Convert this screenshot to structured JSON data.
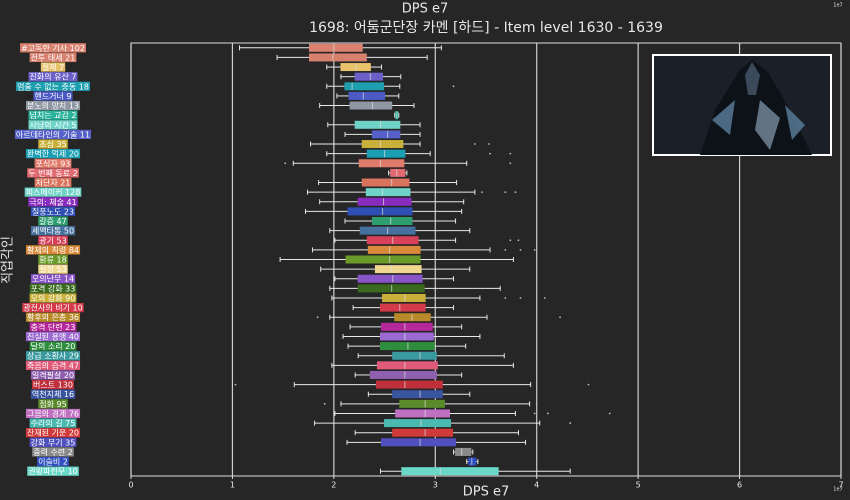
{
  "chart_data": {
    "type": "box",
    "suptitle": "DPS e7",
    "title": "1698: 어둠군단장 카멘 [하드] - Item level 1630 - 1639",
    "xlabel": "DPS e7",
    "ylabel": "직업각인",
    "offset_text": "1e7",
    "xlim": [
      0,
      7
    ],
    "xticks": [
      0,
      1,
      2,
      3,
      4,
      5,
      6,
      7
    ],
    "grid": true,
    "categories": [
      "#고독한 기사 102",
      "전투 태세 21",
      "절제 7",
      "진화의 유산 7",
      "멈출 수 없는 충동 18",
      "핸드거너 9",
      "분노의 망치 13",
      "넘치는 교감 2",
      "사냥의 시간 5",
      "아르데타인의 기술 11",
      "초심 35",
      "완벽한 억제 20",
      "포식자 93",
      "두 번째 동료 2",
      "처단자 21",
      "피스메이커 128",
      "극의: 체술 41",
      "질풍노도 23",
      "갈증 47",
      "세맥타통 50",
      "광기 53",
      "황제의 칙령 84",
      "환류 18",
      "절정 53",
      "오의난무 14",
      "포격 강화 33",
      "오의 강화 90",
      "광전사의 비기 10",
      "황후의 은총 36",
      "충격 단련 23",
      "진실된 용맹 40",
      "달의 소리 20",
      "상급 소환사 29",
      "죽음의 습격 47",
      "일격필살 20",
      "버스트 130",
      "역천지체 16",
      "점화 95",
      "그믐의 경계 76",
      "수라의 길 75",
      "잔재된 기운 20",
      "강화 무기 35",
      "중력 수련 2",
      "이슬비 2",
      "권왕파천무 10"
    ],
    "colors": [
      "#d9826f",
      "#d7806e",
      "#e6c36a",
      "#6c5fc8",
      "#1e9fb0",
      "#4b5ac4",
      "#8f97a3",
      "#2bb39b",
      "#6fd3c8",
      "#5560c8",
      "#c9b03a",
      "#1b9fb3",
      "#e07a6a",
      "#e06a70",
      "#d9735d",
      "#6fd3c8",
      "#8a2bbf",
      "#2f4fb5",
      "#2e9e6e",
      "#46719e",
      "#d9415a",
      "#d88a3a",
      "#6a9a2a",
      "#f0d890",
      "#8855c8",
      "#3a6a1e",
      "#c8b03a",
      "#d43a4a",
      "#b88a2a",
      "#b5289a",
      "#9a6ad0",
      "#2e8e3e",
      "#3a9aa0",
      "#e05a7a",
      "#9060b0",
      "#c0303a",
      "#3a55a0",
      "#5a8a2a",
      "#c070c0",
      "#4abab0",
      "#d03a3a",
      "#5050c0",
      "#8a8a8a",
      "#3050c0",
      "#6ad8c8"
    ],
    "stats": [
      {
        "whislo": 1.07,
        "q1": 1.76,
        "med": 2.0,
        "q3": 2.28,
        "whishi": 3.06,
        "fliers": []
      },
      {
        "whislo": 1.44,
        "q1": 1.76,
        "med": 1.99,
        "q3": 2.32,
        "whishi": 2.92,
        "fliers": []
      },
      {
        "whislo": 1.93,
        "q1": 2.07,
        "med": 2.22,
        "q3": 2.36,
        "whishi": 2.47,
        "fliers": []
      },
      {
        "whislo": 2.07,
        "q1": 2.21,
        "med": 2.36,
        "q3": 2.48,
        "whishi": 2.66,
        "fliers": []
      },
      {
        "whislo": 1.93,
        "q1": 2.11,
        "med": 2.18,
        "q3": 2.49,
        "whishi": 2.65,
        "fliers": [
          3.18
        ]
      },
      {
        "whislo": 2.03,
        "q1": 2.15,
        "med": 2.29,
        "q3": 2.5,
        "whishi": 2.64,
        "fliers": []
      },
      {
        "whislo": 1.86,
        "q1": 2.16,
        "med": 2.38,
        "q3": 2.57,
        "whishi": 2.79,
        "fliers": []
      },
      {
        "whislo": 2.6,
        "q1": 2.61,
        "med": 2.62,
        "q3": 2.63,
        "whishi": 2.64,
        "fliers": []
      },
      {
        "whislo": 1.94,
        "q1": 2.21,
        "med": 2.46,
        "q3": 2.65,
        "whishi": 2.85,
        "fliers": []
      },
      {
        "whislo": 2.11,
        "q1": 2.38,
        "med": 2.53,
        "q3": 2.65,
        "whishi": 2.85,
        "fliers": []
      },
      {
        "whislo": 1.77,
        "q1": 2.28,
        "med": 2.46,
        "q3": 2.68,
        "whishi": 2.85,
        "fliers": [
          3.39,
          3.53
        ]
      },
      {
        "whislo": 1.93,
        "q1": 2.33,
        "med": 2.5,
        "q3": 2.7,
        "whishi": 2.95,
        "fliers": [
          3.54,
          3.74
        ]
      },
      {
        "whislo": 1.6,
        "q1": 2.25,
        "med": 2.46,
        "q3": 2.69,
        "whishi": 3.31,
        "fliers": [
          1.52,
          3.74
        ]
      },
      {
        "whislo": 2.54,
        "q1": 2.56,
        "med": 2.62,
        "q3": 2.7,
        "whishi": 2.72,
        "fliers": []
      },
      {
        "whislo": 1.85,
        "q1": 2.28,
        "med": 2.57,
        "q3": 2.74,
        "whishi": 3.21,
        "fliers": []
      },
      {
        "whislo": 1.74,
        "q1": 2.32,
        "med": 2.48,
        "q3": 2.75,
        "whishi": 3.39,
        "fliers": [
          3.46,
          3.69,
          3.79
        ]
      },
      {
        "whislo": 1.86,
        "q1": 2.24,
        "med": 2.49,
        "q3": 2.76,
        "whishi": 3.28,
        "fliers": []
      },
      {
        "whislo": 1.72,
        "q1": 2.14,
        "med": 2.48,
        "q3": 2.77,
        "whishi": 3.26,
        "fliers": []
      },
      {
        "whislo": 2.11,
        "q1": 2.38,
        "med": 2.56,
        "q3": 2.77,
        "whishi": 3.2,
        "fliers": []
      },
      {
        "whislo": 1.96,
        "q1": 2.26,
        "med": 2.53,
        "q3": 2.8,
        "whishi": 3.34,
        "fliers": []
      },
      {
        "whislo": 2.01,
        "q1": 2.33,
        "med": 2.58,
        "q3": 2.83,
        "whishi": 3.2,
        "fliers": [
          3.74,
          3.82
        ]
      },
      {
        "whislo": 1.79,
        "q1": 2.34,
        "med": 2.55,
        "q3": 2.85,
        "whishi": 3.54,
        "fliers": [
          3.69,
          3.84,
          3.98
        ]
      },
      {
        "whislo": 1.47,
        "q1": 2.12,
        "med": 2.55,
        "q3": 2.85,
        "whishi": 3.77,
        "fliers": []
      },
      {
        "whislo": 1.87,
        "q1": 2.41,
        "med": 2.57,
        "q3": 2.86,
        "whishi": 3.34,
        "fliers": []
      },
      {
        "whislo": 2.01,
        "q1": 2.24,
        "med": 2.58,
        "q3": 2.87,
        "whishi": 3.18,
        "fliers": []
      },
      {
        "whislo": 1.96,
        "q1": 2.24,
        "med": 2.57,
        "q3": 2.89,
        "whishi": 3.64,
        "fliers": []
      },
      {
        "whislo": 1.98,
        "q1": 2.48,
        "med": 2.7,
        "q3": 2.9,
        "whishi": 3.44,
        "fliers": [
          3.69,
          3.84,
          4.08
        ]
      },
      {
        "whislo": 2.19,
        "q1": 2.46,
        "med": 2.65,
        "q3": 2.9,
        "whishi": 3.18,
        "fliers": []
      },
      {
        "whislo": 1.96,
        "q1": 2.6,
        "med": 2.77,
        "q3": 2.95,
        "whishi": 3.51,
        "fliers": [
          1.84,
          4.23
        ]
      },
      {
        "whislo": 2.16,
        "q1": 2.47,
        "med": 2.7,
        "q3": 2.97,
        "whishi": 3.26,
        "fliers": []
      },
      {
        "whislo": 2.09,
        "q1": 2.46,
        "med": 2.7,
        "q3": 2.98,
        "whishi": 3.44,
        "fliers": []
      },
      {
        "whislo": 2.14,
        "q1": 2.46,
        "med": 2.73,
        "q3": 2.99,
        "whishi": 3.3,
        "fliers": []
      },
      {
        "whislo": 2.24,
        "q1": 2.58,
        "med": 2.85,
        "q3": 3.01,
        "whishi": 3.68,
        "fliers": []
      },
      {
        "whislo": 1.98,
        "q1": 2.43,
        "med": 2.7,
        "q3": 3.02,
        "whishi": 3.77,
        "fliers": []
      },
      {
        "whislo": 2.21,
        "q1": 2.36,
        "med": 2.7,
        "q3": 3.01,
        "whishi": 3.26,
        "fliers": []
      },
      {
        "whislo": 1.61,
        "q1": 2.42,
        "med": 2.7,
        "q3": 3.07,
        "whishi": 3.94,
        "fliers": [
          1.03,
          4.51
        ]
      },
      {
        "whislo": 2.34,
        "q1": 2.58,
        "med": 2.85,
        "q3": 3.07,
        "whishi": 3.34,
        "fliers": []
      },
      {
        "whislo": 2.07,
        "q1": 2.65,
        "med": 2.9,
        "q3": 3.09,
        "whishi": 3.93,
        "fliers": [
          1.91,
          4.0
        ]
      },
      {
        "whislo": 2.01,
        "q1": 2.61,
        "med": 2.9,
        "q3": 3.14,
        "whishi": 3.79,
        "fliers": [
          3.98,
          4.11,
          4.72
        ]
      },
      {
        "whislo": 1.81,
        "q1": 2.5,
        "med": 2.86,
        "q3": 3.15,
        "whishi": 4.03,
        "fliers": [
          4.33
        ]
      },
      {
        "whislo": 2.21,
        "q1": 2.58,
        "med": 2.9,
        "q3": 3.17,
        "whishi": 3.82,
        "fliers": []
      },
      {
        "whislo": 2.13,
        "q1": 2.47,
        "med": 2.85,
        "q3": 3.2,
        "whishi": 3.89,
        "fliers": []
      },
      {
        "whislo": 3.18,
        "q1": 3.2,
        "med": 3.26,
        "q3": 3.35,
        "whishi": 3.37,
        "fliers": []
      },
      {
        "whislo": 3.31,
        "q1": 3.33,
        "med": 3.36,
        "q3": 3.4,
        "whishi": 3.42,
        "fliers": []
      },
      {
        "whislo": 2.46,
        "q1": 2.67,
        "med": 3.05,
        "q3": 3.62,
        "whishi": 4.33,
        "fliers": []
      }
    ]
  }
}
